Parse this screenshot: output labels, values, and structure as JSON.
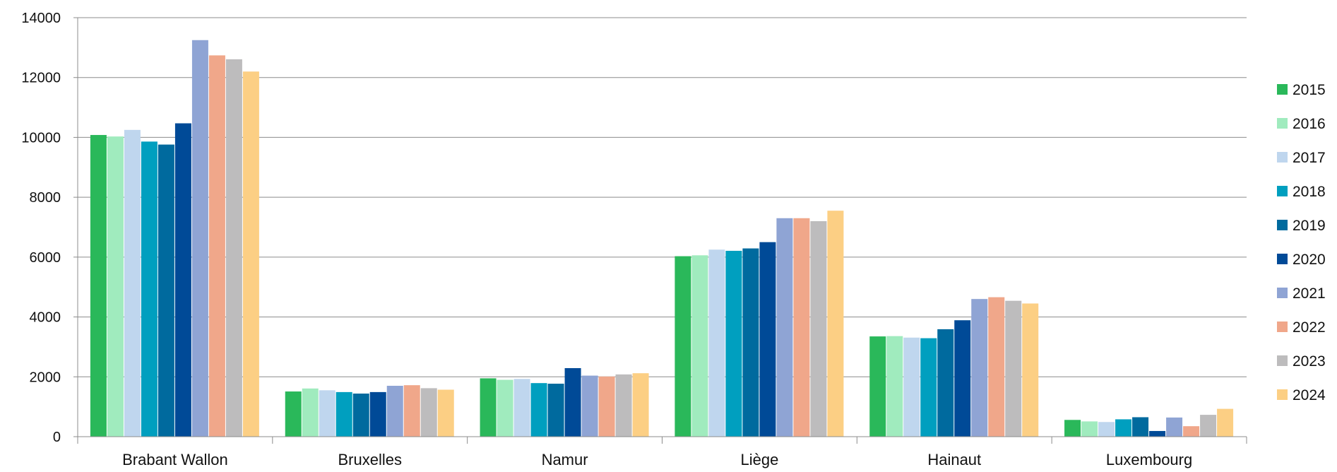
{
  "chart_data": {
    "type": "bar",
    "title": "",
    "xlabel": "",
    "ylabel": "",
    "ylim": [
      0,
      14000
    ],
    "yticks": [
      0,
      2000,
      4000,
      6000,
      8000,
      10000,
      12000,
      14000
    ],
    "grid": "horizontal",
    "legend_position": "right",
    "categories": [
      "Brabant Wallon",
      "Bruxelles",
      "Namur",
      "Liège",
      "Hainaut",
      "Luxembourg"
    ],
    "series": [
      {
        "name": "2015",
        "color": "#2ab85a",
        "values": [
          10080,
          1510,
          1950,
          6030,
          3350,
          560
        ]
      },
      {
        "name": "2016",
        "color": "#a0ebbe",
        "values": [
          10030,
          1610,
          1900,
          6060,
          3360,
          510
        ]
      },
      {
        "name": "2017",
        "color": "#bfd6ee",
        "values": [
          10250,
          1550,
          1930,
          6250,
          3310,
          490
        ]
      },
      {
        "name": "2018",
        "color": "#009fbf",
        "values": [
          9860,
          1490,
          1790,
          6210,
          3290,
          580
        ]
      },
      {
        "name": "2019",
        "color": "#006a9e",
        "values": [
          9760,
          1440,
          1770,
          6290,
          3590,
          650
        ]
      },
      {
        "name": "2020",
        "color": "#004a97",
        "values": [
          10470,
          1490,
          2290,
          6500,
          3890,
          190
        ]
      },
      {
        "name": "2021",
        "color": "#8fa4d4",
        "values": [
          13250,
          1700,
          2040,
          7300,
          4600,
          640
        ]
      },
      {
        "name": "2022",
        "color": "#f0a78a",
        "values": [
          12740,
          1720,
          2010,
          7300,
          4660,
          350
        ]
      },
      {
        "name": "2023",
        "color": "#bdbcbd",
        "values": [
          12610,
          1620,
          2080,
          7200,
          4540,
          730
        ]
      },
      {
        "name": "2024",
        "color": "#fccf84",
        "values": [
          12200,
          1570,
          2120,
          7550,
          4450,
          930
        ]
      }
    ]
  }
}
